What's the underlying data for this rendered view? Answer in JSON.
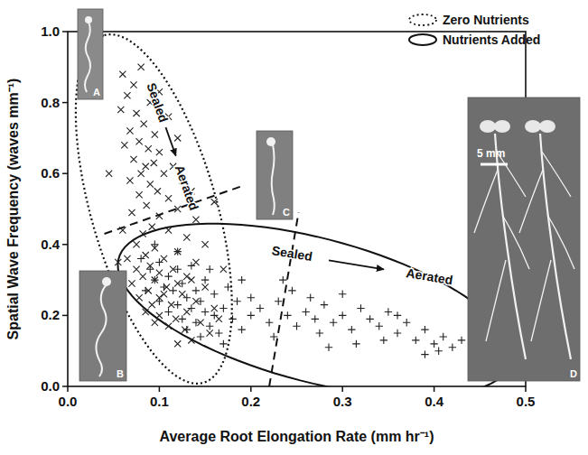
{
  "chart_data": {
    "type": "scatter",
    "xlabel": "Average Root Elongation Rate (mm hr⁻¹)",
    "ylabel": "Spatial Wave Frequency (waves mm⁻¹)",
    "xlim": [
      0,
      0.5
    ],
    "ylim": [
      0,
      1.0
    ],
    "xticks": [
      {
        "value": 0,
        "label": "0.0"
      },
      {
        "value": 0.1,
        "label": "0.1"
      },
      {
        "value": 0.2,
        "label": "0.2"
      },
      {
        "value": 0.3,
        "label": "0.3"
      },
      {
        "value": 0.4,
        "label": "0.4"
      },
      {
        "value": 0.5,
        "label": "0.5"
      }
    ],
    "yticks": [
      {
        "value": 0,
        "label": "0.0"
      },
      {
        "value": 0.2,
        "label": "0.2"
      },
      {
        "value": 0.4,
        "label": "0.4"
      },
      {
        "value": 0.6,
        "label": "0.6"
      },
      {
        "value": 0.8,
        "label": "0.8"
      },
      {
        "value": 1.0,
        "label": "1.0"
      }
    ],
    "legend": "upper right",
    "series": [
      {
        "name": "Zero Nutrients",
        "marker": "x",
        "color": "#222222",
        "line_style": "dotted",
        "x": [
          0.06,
          0.072,
          0.08,
          0.065,
          0.09,
          0.058,
          0.075,
          0.1,
          0.083,
          0.068,
          0.095,
          0.11,
          0.078,
          0.088,
          0.062,
          0.1,
          0.12,
          0.072,
          0.085,
          0.094,
          0.105,
          0.08,
          0.115,
          0.068,
          0.09,
          0.125,
          0.098,
          0.078,
          0.11,
          0.135,
          0.086,
          0.12,
          0.1,
          0.07,
          0.092,
          0.14,
          0.11,
          0.082,
          0.13,
          0.06,
          0.075,
          0.095,
          0.12,
          0.085,
          0.105,
          0.065,
          0.14,
          0.09,
          0.115,
          0.075,
          0.1,
          0.13,
          0.082,
          0.095,
          0.12,
          0.07,
          0.108,
          0.15,
          0.088,
          0.125,
          0.1,
          0.078,
          0.14,
          0.113,
          0.092,
          0.13,
          0.1,
          0.16,
          0.118,
          0.085,
          0.145,
          0.11,
          0.128,
          0.095,
          0.155,
          0.135,
          0.12,
          0.165,
          0.105,
          0.135,
          0.045,
          0.055,
          0.15,
          0.17,
          0.16
        ],
        "values": [
          0.88,
          0.85,
          0.9,
          0.82,
          0.8,
          0.78,
          0.77,
          0.83,
          0.74,
          0.72,
          0.71,
          0.76,
          0.69,
          0.67,
          0.68,
          0.66,
          0.7,
          0.64,
          0.62,
          0.63,
          0.6,
          0.6,
          0.62,
          0.58,
          0.57,
          0.58,
          0.55,
          0.54,
          0.53,
          0.55,
          0.51,
          0.5,
          0.48,
          0.49,
          0.45,
          0.47,
          0.44,
          0.43,
          0.42,
          0.44,
          0.4,
          0.39,
          0.38,
          0.37,
          0.36,
          0.36,
          0.35,
          0.34,
          0.33,
          0.33,
          0.32,
          0.31,
          0.31,
          0.3,
          0.29,
          0.29,
          0.28,
          0.28,
          0.27,
          0.26,
          0.25,
          0.25,
          0.24,
          0.23,
          0.23,
          0.21,
          0.2,
          0.22,
          0.19,
          0.21,
          0.18,
          0.17,
          0.16,
          0.18,
          0.15,
          0.13,
          0.12,
          0.19,
          0.26,
          0.3,
          0.6,
          0.35,
          0.4,
          0.33,
          0.52
        ],
        "region": {
          "center": [
            0.094,
            0.5
          ],
          "major_end": [
            0.04,
            0.99
          ],
          "minor_end": [
            0.16,
            0.548
          ]
        },
        "annotations": [
          {
            "text": "Sealed",
            "x": 0.098,
            "y": 0.8
          },
          {
            "text": "Aerated",
            "x": 0.13,
            "y": 0.56
          }
        ],
        "arrow": {
          "from": [
            0.107,
            0.73
          ],
          "to": [
            0.118,
            0.65
          ]
        }
      },
      {
        "name": "Nutrients Added",
        "marker": "+",
        "color": "#222222",
        "line_style": "solid",
        "x": [
          0.08,
          0.09,
          0.1,
          0.095,
          0.11,
          0.12,
          0.105,
          0.115,
          0.125,
          0.13,
          0.14,
          0.1,
          0.12,
          0.135,
          0.145,
          0.15,
          0.11,
          0.125,
          0.16,
          0.14,
          0.155,
          0.17,
          0.13,
          0.165,
          0.18,
          0.12,
          0.135,
          0.15,
          0.16,
          0.175,
          0.145,
          0.185,
          0.19,
          0.2,
          0.085,
          0.095,
          0.17,
          0.155,
          0.19,
          0.2,
          0.21,
          0.22,
          0.23,
          0.24,
          0.25,
          0.26,
          0.27,
          0.28,
          0.29,
          0.3,
          0.31,
          0.32,
          0.33,
          0.34,
          0.35,
          0.36,
          0.37,
          0.38,
          0.39,
          0.4,
          0.41,
          0.42,
          0.43,
          0.245,
          0.265,
          0.3,
          0.225,
          0.275,
          0.315,
          0.345,
          0.36,
          0.39,
          0.405,
          0.235,
          0.285
        ],
        "values": [
          0.36,
          0.33,
          0.35,
          0.3,
          0.31,
          0.33,
          0.28,
          0.27,
          0.29,
          0.25,
          0.27,
          0.24,
          0.23,
          0.22,
          0.24,
          0.21,
          0.21,
          0.19,
          0.2,
          0.18,
          0.17,
          0.22,
          0.16,
          0.15,
          0.19,
          0.38,
          0.34,
          0.3,
          0.26,
          0.28,
          0.14,
          0.24,
          0.16,
          0.2,
          0.27,
          0.4,
          0.12,
          0.33,
          0.3,
          0.25,
          0.22,
          0.18,
          0.24,
          0.2,
          0.17,
          0.21,
          0.19,
          0.23,
          0.18,
          0.2,
          0.16,
          0.22,
          0.19,
          0.17,
          0.21,
          0.15,
          0.18,
          0.13,
          0.16,
          0.12,
          0.14,
          0.11,
          0.13,
          0.27,
          0.25,
          0.26,
          0.14,
          0.15,
          0.12,
          0.13,
          0.2,
          0.09,
          0.1,
          0.3,
          0.11
        ],
        "region": {
          "center": [
            0.27,
            0.215
          ],
          "major_end": [
            0.485,
            0.1
          ],
          "minor_end": [
            0.258,
            0.43
          ]
        },
        "annotations": [
          {
            "text": "Sealed",
            "x": 0.245,
            "y": 0.375
          },
          {
            "text": "Aerated",
            "x": 0.395,
            "y": 0.31
          }
        ],
        "arrow": {
          "from": [
            0.285,
            0.355
          ],
          "to": [
            0.345,
            0.33
          ]
        }
      }
    ],
    "dividers": [
      {
        "line_style": "dashed",
        "x": [
          0.04,
          0.193
        ],
        "y": [
          0.43,
          0.567
        ]
      },
      {
        "line_style": "dashed",
        "x": [
          0.22,
          0.252
        ],
        "y": [
          0.0,
          0.49
        ]
      }
    ],
    "panels": [
      "A",
      "B",
      "C",
      "D"
    ],
    "scale_bar": "5 mm"
  }
}
